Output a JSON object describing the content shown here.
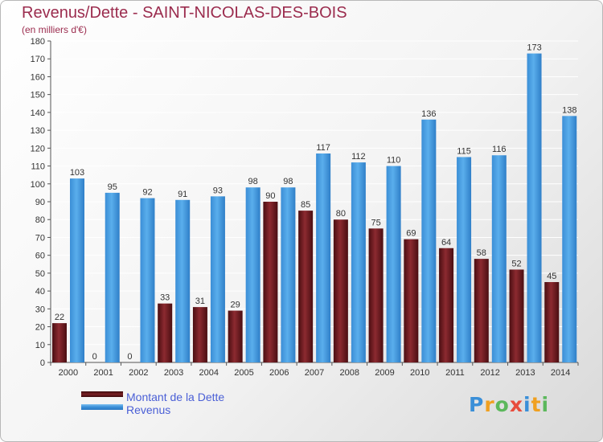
{
  "title": "Revenus/Dette - SAINT-NICOLAS-DES-BOIS",
  "subtitle": "(en milliers d'€)",
  "colors": {
    "dette": "#7a2025",
    "revenus": "#4d9fe0",
    "title": "#9b2c4e",
    "legend_text": "#4a5fd6"
  },
  "legend": [
    {
      "label": "Montant de la Dette",
      "color": "#7a2025"
    },
    {
      "label": "Revenus",
      "color": "#4d9fe0"
    }
  ],
  "logo": {
    "text": "Proxiti"
  },
  "chart_data": {
    "type": "bar",
    "title": "Revenus/Dette - SAINT-NICOLAS-DES-BOIS",
    "subtitle": "(en milliers d'€)",
    "categories": [
      "2000",
      "2001",
      "2002",
      "2003",
      "2004",
      "2005",
      "2006",
      "2007",
      "2008",
      "2009",
      "2010",
      "2011",
      "2012",
      "2013",
      "2014"
    ],
    "series": [
      {
        "name": "Montant de la Dette",
        "color": "#7a2025",
        "values": [
          22,
          0,
          0,
          33,
          31,
          29,
          90,
          85,
          80,
          75,
          69,
          64,
          58,
          52,
          45
        ]
      },
      {
        "name": "Revenus",
        "color": "#4d9fe0",
        "values": [
          103,
          95,
          92,
          91,
          93,
          98,
          98,
          117,
          112,
          110,
          136,
          115,
          116,
          173,
          138
        ]
      }
    ],
    "ylim": [
      0,
      180
    ],
    "yticks": [
      0,
      10,
      20,
      30,
      40,
      50,
      60,
      70,
      80,
      90,
      100,
      110,
      120,
      130,
      140,
      150,
      160,
      170,
      180
    ],
    "grid": true,
    "legend_position": "bottom-left"
  }
}
